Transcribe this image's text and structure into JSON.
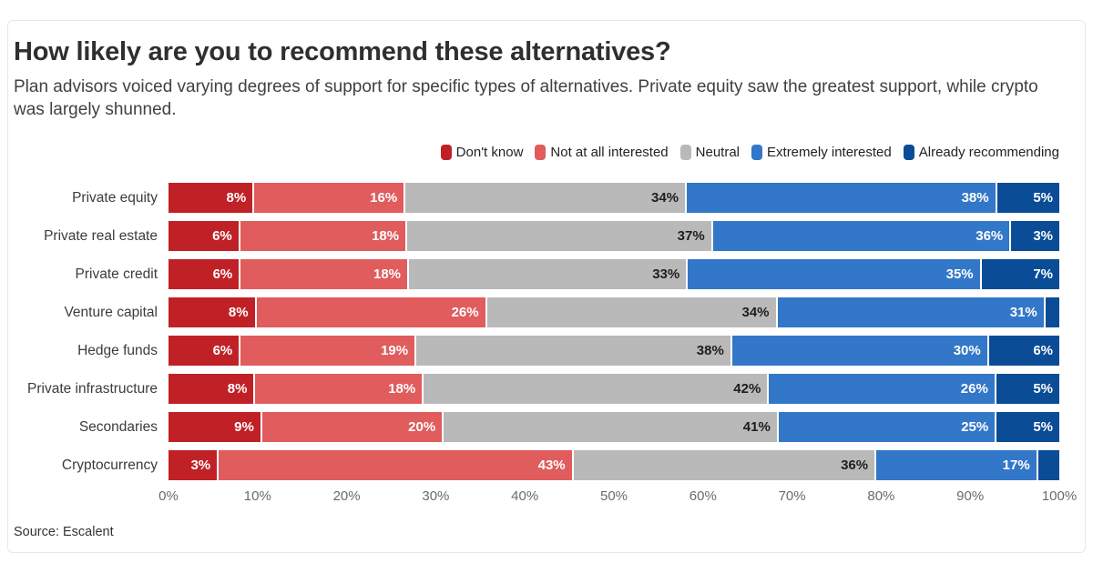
{
  "page": {
    "title": "How likely are you to recommend these alternatives?",
    "subtitle": "Plan advisors voiced varying degrees of support for specific types of alternatives. Private equity saw the greatest support, while crypto was largely shunned.",
    "source": "Source: Escalent"
  },
  "colors": {
    "card_border": "#e7e8ea",
    "title_text": "#2f2f2f",
    "tick_text": "#6b6b6b"
  },
  "chart_data": {
    "type": "bar",
    "orientation": "horizontal-stacked",
    "title": "How likely are you to recommend these alternatives?",
    "categories": [
      "Private equity",
      "Private real estate",
      "Private credit",
      "Venture capital",
      "Hedge funds",
      "Private infrastructure",
      "Secondaries",
      "Cryptocurrency"
    ],
    "series": [
      {
        "name": "Don't know",
        "color": "#c02126",
        "label_color": "#ffffff",
        "values": [
          8,
          6,
          6,
          8,
          6,
          8,
          9,
          3
        ]
      },
      {
        "name": "Not at all interested",
        "color": "#e05c5d",
        "label_color": "#ffffff",
        "values": [
          16,
          18,
          18,
          26,
          19,
          18,
          20,
          43
        ]
      },
      {
        "name": "Neutral",
        "color": "#b9b9b9",
        "label_color": "#1e1e1e",
        "values": [
          34,
          37,
          33,
          34,
          38,
          42,
          41,
          36
        ]
      },
      {
        "name": "Extremely interested",
        "color": "#3377c8",
        "label_color": "#ffffff",
        "values": [
          38,
          36,
          35,
          31,
          30,
          26,
          25,
          17
        ]
      },
      {
        "name": "Already recommending",
        "color": "#0a4c96",
        "label_color": "#ffffff",
        "values": [
          5,
          3,
          7,
          1,
          6,
          5,
          5,
          2
        ]
      }
    ],
    "x_ticks": [
      "0%",
      "10%",
      "20%",
      "30%",
      "40%",
      "50%",
      "60%",
      "70%",
      "80%",
      "90%",
      "100%"
    ],
    "xlim": [
      0,
      100
    ],
    "value_suffix": "%",
    "label_min_display": 3,
    "legend_position": "top-right",
    "grid": false
  }
}
